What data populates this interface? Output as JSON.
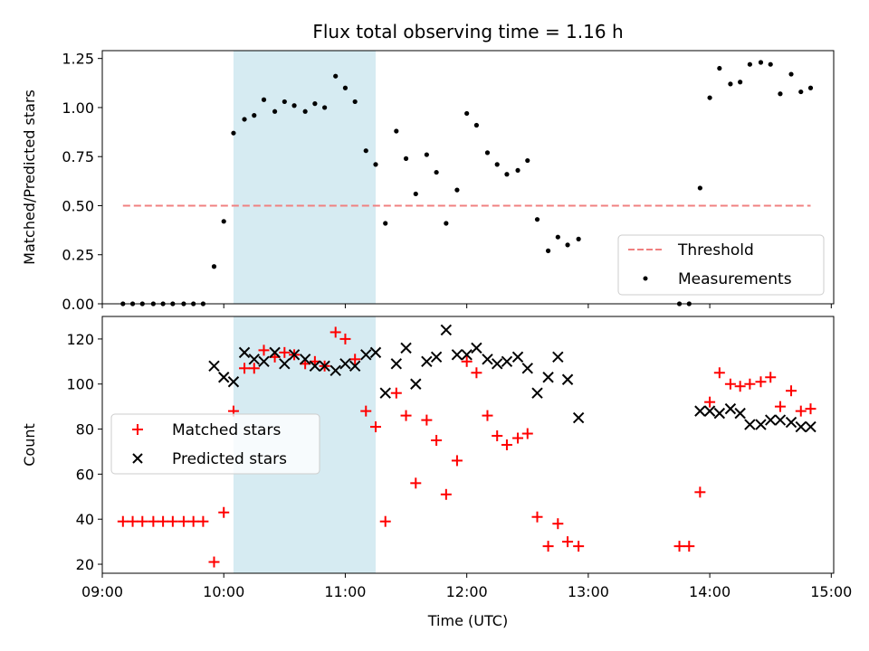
{
  "title": "Flux total observing time = 1.16 h",
  "colors": {
    "threshold": "#f08080",
    "measurement": "#000000",
    "matched": "#ff0000",
    "predicted": "#000000",
    "span_fill": "#add8e6"
  },
  "chart_data": [
    {
      "type": "scatter",
      "ylabel": "Matched/Predicted stars",
      "xlabel": "",
      "xlim": [
        9.0,
        15.02
      ],
      "ylim": [
        0,
        1.29
      ],
      "yticks": [
        0.0,
        0.25,
        0.5,
        0.75,
        1.0,
        1.25
      ],
      "ytick_labels": [
        "0.00",
        "0.25",
        "0.50",
        "0.75",
        "1.00",
        "1.25"
      ],
      "xticks": [
        9,
        10,
        11,
        12,
        13,
        14,
        15
      ],
      "shaded_span": [
        10.08,
        11.25
      ],
      "legend_position": "lower-right",
      "threshold": {
        "name": "Threshold",
        "value": 0.5,
        "x_range": [
          9.17,
          14.83
        ]
      },
      "series": [
        {
          "name": "Measurements",
          "x": [
            9.17,
            9.25,
            9.33,
            9.42,
            9.5,
            9.58,
            9.67,
            9.75,
            9.83,
            9.92,
            10.0,
            10.08,
            10.17,
            10.25,
            10.33,
            10.42,
            10.5,
            10.58,
            10.67,
            10.75,
            10.83,
            10.92,
            11.0,
            11.08,
            11.17,
            11.25,
            11.33,
            11.42,
            11.5,
            11.58,
            11.67,
            11.75,
            11.83,
            11.92,
            12.0,
            12.08,
            12.17,
            12.25,
            12.33,
            12.42,
            12.5,
            12.58,
            12.67,
            12.75,
            12.83,
            12.92,
            13.75,
            13.83,
            13.92,
            14.0,
            14.08,
            14.17,
            14.25,
            14.33,
            14.42,
            14.5,
            14.58,
            14.67,
            14.75,
            14.83
          ],
          "y": [
            0.0,
            0.0,
            0.0,
            0.0,
            0.0,
            0.0,
            0.0,
            0.0,
            0.0,
            0.19,
            0.42,
            0.87,
            0.94,
            0.96,
            1.04,
            0.98,
            1.03,
            1.01,
            0.98,
            1.02,
            1.0,
            1.16,
            1.1,
            1.03,
            0.78,
            0.71,
            0.41,
            0.88,
            0.74,
            0.56,
            0.76,
            0.67,
            0.41,
            0.58,
            0.97,
            0.91,
            0.77,
            0.71,
            0.66,
            0.68,
            0.73,
            0.43,
            0.27,
            0.34,
            0.3,
            0.33,
            0.0,
            0.0,
            0.59,
            1.05,
            1.2,
            1.12,
            1.13,
            1.22,
            1.23,
            1.22,
            1.07,
            1.17,
            1.08,
            1.1
          ]
        }
      ]
    },
    {
      "type": "scatter",
      "ylabel": "Count",
      "xlabel": "Time (UTC)",
      "xlim": [
        9.0,
        15.02
      ],
      "ylim": [
        16,
        130
      ],
      "yticks": [
        20,
        40,
        60,
        80,
        100,
        120
      ],
      "ytick_labels": [
        "20",
        "40",
        "60",
        "80",
        "100",
        "120"
      ],
      "xticks": [
        9,
        10,
        11,
        12,
        13,
        14,
        15
      ],
      "xtick_labels": [
        "09:00",
        "10:00",
        "11:00",
        "12:00",
        "13:00",
        "14:00",
        "15:00"
      ],
      "shaded_span": [
        10.08,
        11.25
      ],
      "legend_position": "center-left",
      "series": [
        {
          "name": "Matched stars",
          "marker": "plus",
          "x": [
            9.17,
            9.25,
            9.33,
            9.42,
            9.5,
            9.58,
            9.67,
            9.75,
            9.83,
            9.92,
            10.0,
            10.08,
            10.17,
            10.25,
            10.33,
            10.42,
            10.5,
            10.58,
            10.67,
            10.75,
            10.83,
            10.92,
            11.0,
            11.08,
            11.17,
            11.25,
            11.33,
            11.42,
            11.5,
            11.58,
            11.67,
            11.75,
            11.83,
            11.92,
            12.0,
            12.08,
            12.17,
            12.25,
            12.33,
            12.42,
            12.5,
            12.58,
            12.67,
            12.75,
            12.83,
            12.92,
            13.75,
            13.83,
            13.92,
            14.0,
            14.08,
            14.17,
            14.25,
            14.33,
            14.42,
            14.5,
            14.58,
            14.67,
            14.75,
            14.83
          ],
          "y": [
            39,
            39,
            39,
            39,
            39,
            39,
            39,
            39,
            39,
            21,
            43,
            88,
            107,
            107,
            115,
            112,
            114,
            113,
            109,
            110,
            108,
            123,
            120,
            111,
            88,
            81,
            39,
            96,
            86,
            56,
            84,
            75,
            51,
            66,
            110,
            105,
            86,
            77,
            73,
            76,
            78,
            41,
            28,
            38,
            30,
            28,
            28,
            28,
            52,
            92,
            105,
            100,
            99,
            100,
            101,
            103,
            90,
            97,
            88,
            89
          ]
        },
        {
          "name": "Predicted stars",
          "marker": "x",
          "x": [
            9.92,
            10.0,
            10.08,
            10.17,
            10.25,
            10.33,
            10.42,
            10.5,
            10.58,
            10.67,
            10.75,
            10.83,
            10.92,
            11.0,
            11.08,
            11.17,
            11.25,
            11.33,
            11.42,
            11.5,
            11.58,
            11.67,
            11.75,
            11.83,
            11.92,
            12.0,
            12.08,
            12.17,
            12.25,
            12.33,
            12.42,
            12.5,
            12.58,
            12.67,
            12.75,
            12.83,
            12.92,
            13.92,
            14.0,
            14.08,
            14.17,
            14.25,
            14.33,
            14.42,
            14.5,
            14.58,
            14.67,
            14.75,
            14.83
          ],
          "y": [
            108,
            103,
            101,
            114,
            111,
            110,
            114,
            109,
            113,
            111,
            108,
            108,
            106,
            109,
            108,
            113,
            114,
            96,
            109,
            116,
            100,
            110,
            112,
            124,
            113,
            113,
            116,
            111,
            109,
            110,
            112,
            107,
            96,
            103,
            112,
            102,
            85,
            88,
            88,
            87,
            89,
            87,
            82,
            82,
            84,
            84,
            83,
            81,
            81
          ]
        }
      ]
    }
  ]
}
